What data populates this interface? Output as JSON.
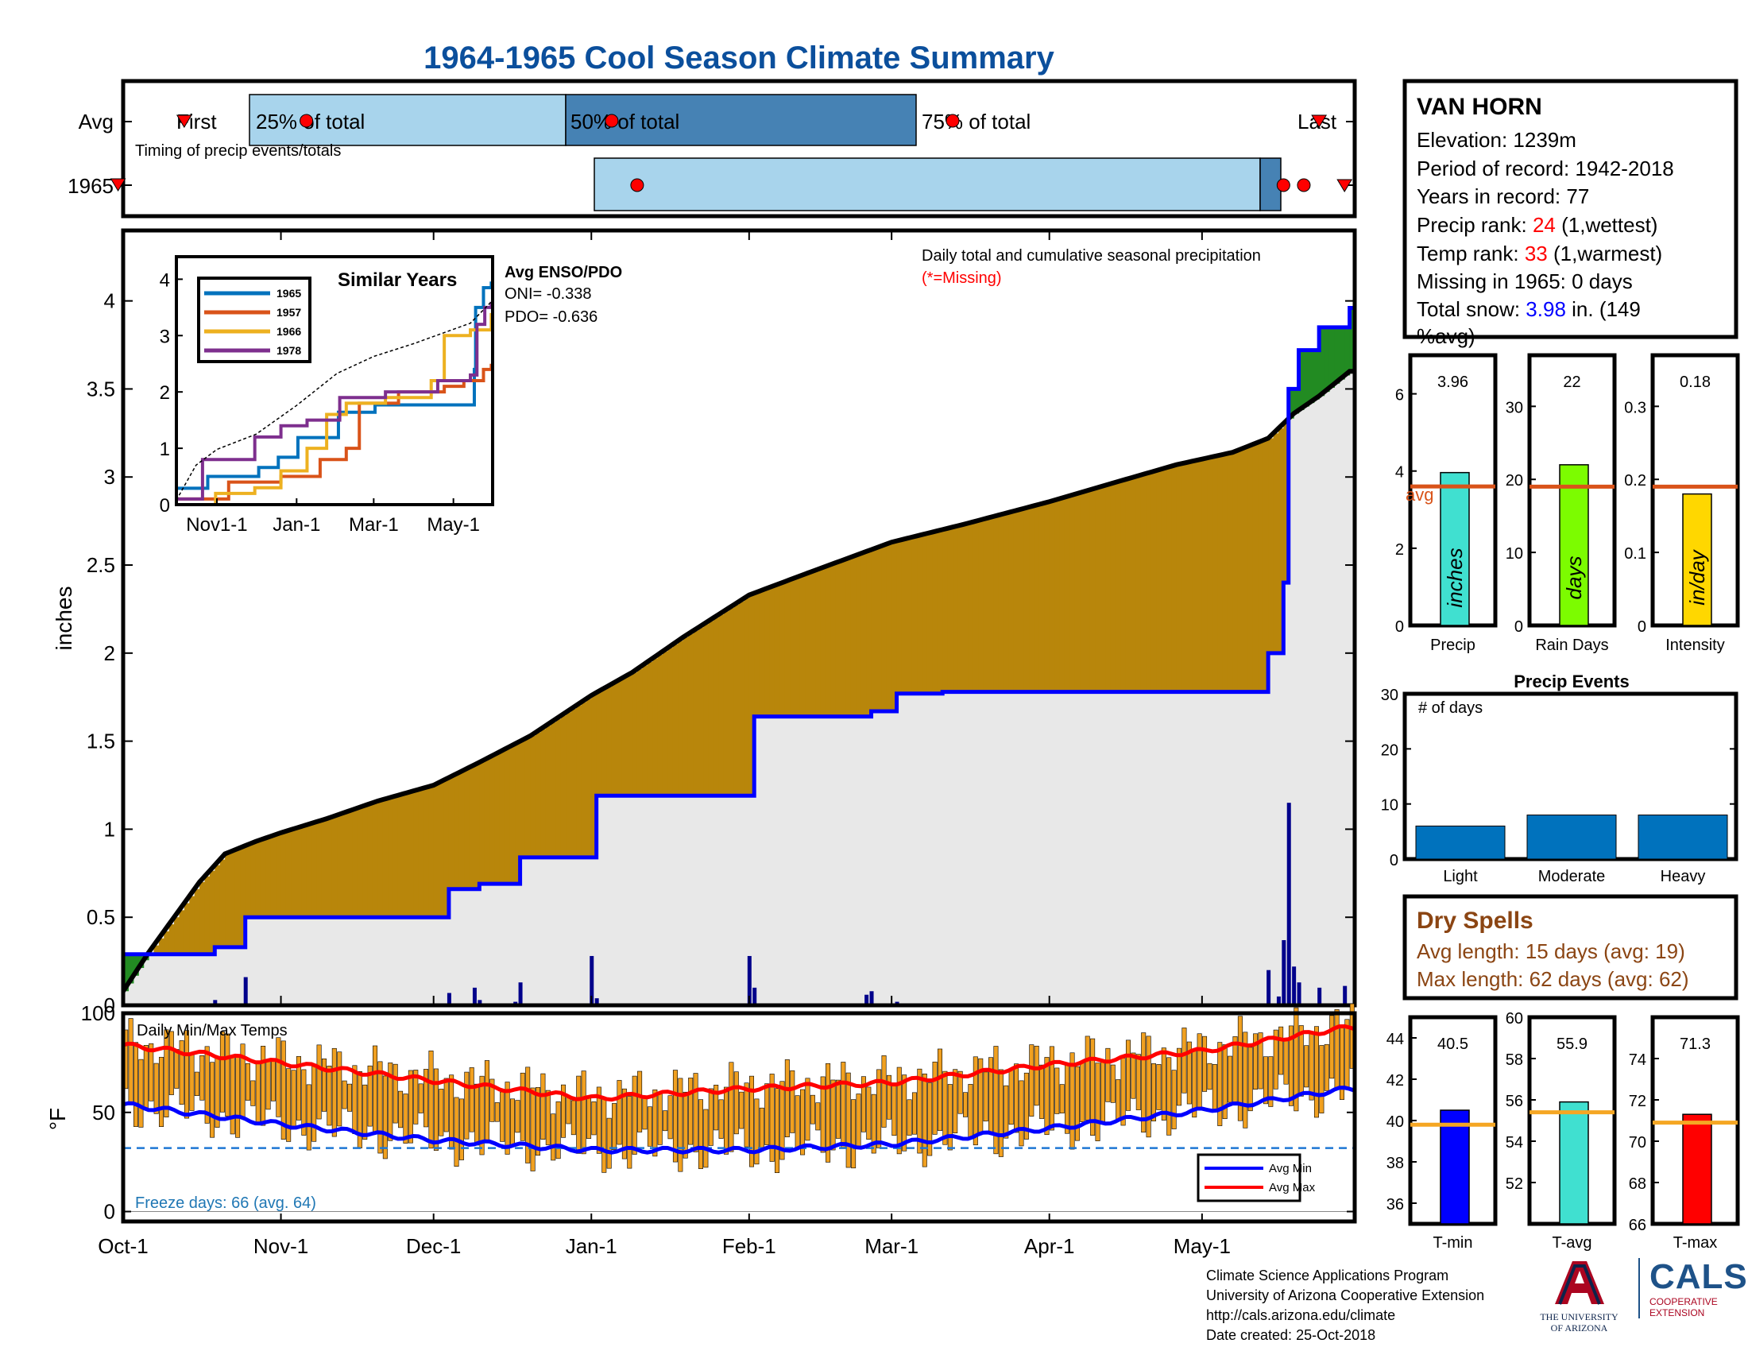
{
  "title": "1964-1965 Cool Season Climate Summary",
  "timing": {
    "caption": "Timing of precip events/totals",
    "avg_label": "Avg",
    "year_label": "1965",
    "first_label": "First",
    "last_label": "Last",
    "pct25_label": "25% of total",
    "pct50_label": "50% of total",
    "pct75_label": "75% of total",
    "avg_markers_day": {
      "first": 12,
      "p25": 36,
      "p50": 96,
      "p75": 163,
      "last": 235
    },
    "year_markers_day": {
      "first": -1,
      "p25": 101,
      "p50": 228,
      "p75": 232,
      "last": 240
    }
  },
  "station": {
    "name": "VAN HORN",
    "elevation": "Elevation: 1239m",
    "period": "Period of record: 1942-2018",
    "years": "Years in record: 77",
    "precip_rank_label": "Precip rank: ",
    "precip_rank_value": "24",
    "precip_rank_note": " (1,wettest)",
    "temp_rank_label": "Temp rank: ",
    "temp_rank_value": "33",
    "temp_rank_note": " (1,warmest)",
    "missing": "Missing in 1965: 0 days",
    "snow_label": "Total snow: ",
    "snow_value": "3.98",
    "snow_unit": " in. (149",
    "snow_avg": "%avg)"
  },
  "main_chart": {
    "caption": "Daily total and cumulative seasonal precipitation",
    "missing_note": "(*=Missing)",
    "ylabel": "inches",
    "y_ticks": [
      "0",
      "0.5",
      "1",
      "1.5",
      "2",
      "2.5",
      "3",
      "3.5",
      "4"
    ],
    "ylim": [
      0,
      4.4
    ],
    "x_ticks": [
      "Oct-1",
      "Nov-1",
      "Dec-1",
      "Jan-1",
      "Feb-1",
      "Mar-1",
      "Apr-1",
      "May-1"
    ],
    "x_tick_days": [
      0,
      31,
      61,
      92,
      123,
      151,
      182,
      212
    ],
    "days_in_season": 242
  },
  "chart_data": [
    {
      "type": "area",
      "title": "Daily total and cumulative seasonal precipitation",
      "xlabel": "",
      "ylabel": "inches",
      "ylim": [
        0,
        4.4
      ],
      "series": [
        {
          "name": "cumulative 1965 (step)",
          "color": "#0000ff",
          "points": [
            [
              0,
              0.29
            ],
            [
              14,
              0.29
            ],
            [
              18,
              0.33
            ],
            [
              24,
              0.5
            ],
            [
              63,
              0.5
            ],
            [
              64,
              0.66
            ],
            [
              69,
              0.66
            ],
            [
              70,
              0.69
            ],
            [
              77,
              0.69
            ],
            [
              78,
              0.84
            ],
            [
              92,
              0.84
            ],
            [
              93,
              1.19
            ],
            [
              123,
              1.19
            ],
            [
              124,
              1.64
            ],
            [
              146,
              1.64
            ],
            [
              147,
              1.67
            ],
            [
              151,
              1.67
            ],
            [
              152,
              1.77
            ],
            [
              160,
              1.77
            ],
            [
              161,
              1.78
            ],
            [
              224,
              1.78
            ],
            [
              225,
              2.0
            ],
            [
              227,
              2.0
            ],
            [
              228,
              2.4
            ],
            [
              229,
              3.5
            ],
            [
              230,
              3.5
            ],
            [
              231,
              3.72
            ],
            [
              234,
              3.72
            ],
            [
              235,
              3.85
            ],
            [
              240,
              3.85
            ],
            [
              241,
              3.96
            ]
          ]
        },
        {
          "name": "cumulative average",
          "color": "#000000",
          "points": [
            [
              0,
              0.08
            ],
            [
              5,
              0.3
            ],
            [
              10,
              0.5
            ],
            [
              15,
              0.7
            ],
            [
              20,
              0.86
            ],
            [
              26,
              0.93
            ],
            [
              31,
              0.98
            ],
            [
              40,
              1.06
            ],
            [
              50,
              1.16
            ],
            [
              61,
              1.25
            ],
            [
              70,
              1.38
            ],
            [
              80,
              1.53
            ],
            [
              92,
              1.76
            ],
            [
              100,
              1.89
            ],
            [
              110,
              2.09
            ],
            [
              123,
              2.33
            ],
            [
              135,
              2.46
            ],
            [
              151,
              2.63
            ],
            [
              165,
              2.73
            ],
            [
              182,
              2.86
            ],
            [
              195,
              2.97
            ],
            [
              207,
              3.07
            ],
            [
              218,
              3.14
            ],
            [
              225,
              3.22
            ],
            [
              230,
              3.36
            ],
            [
              235,
              3.46
            ],
            [
              241,
              3.6
            ]
          ]
        },
        {
          "name": "daily precip 1965",
          "color": "#00008b",
          "days": [
            18,
            24,
            64,
            69,
            70,
            77,
            78,
            92,
            93,
            123,
            124,
            146,
            147,
            152,
            161,
            225,
            227,
            228,
            229,
            230,
            231,
            235,
            240
          ],
          "values": [
            0.03,
            0.16,
            0.07,
            0.1,
            0.03,
            0.02,
            0.13,
            0.28,
            0.04,
            0.28,
            0.1,
            0.06,
            0.08,
            0.02,
            0.01,
            0.2,
            0.05,
            0.37,
            1.15,
            0.22,
            0.13,
            0.1,
            0.11
          ]
        }
      ]
    },
    {
      "type": "line",
      "title": "Similar Years",
      "x_ticks": [
        "Nov1-1",
        "Jan-1",
        "Mar-1",
        "May-1"
      ],
      "x_tick_days": [
        31,
        92,
        151,
        212
      ],
      "y_ticks": [
        "0",
        "1",
        "2",
        "3",
        "4"
      ],
      "ylim": [
        0,
        4
      ],
      "series": [
        {
          "name": "1965",
          "color": "#0072bd",
          "points": [
            [
              0,
              0.29
            ],
            [
              24,
              0.5
            ],
            [
              63,
              0.66
            ],
            [
              78,
              0.84
            ],
            [
              93,
              1.19
            ],
            [
              124,
              1.64
            ],
            [
              152,
              1.77
            ],
            [
              228,
              2.4
            ],
            [
              229,
              3.5
            ],
            [
              235,
              3.85
            ],
            [
              241,
              3.96
            ]
          ]
        },
        {
          "name": "1957",
          "color": "#d95319",
          "points": [
            [
              0,
              0.1
            ],
            [
              40,
              0.4
            ],
            [
              80,
              0.5
            ],
            [
              110,
              0.8
            ],
            [
              130,
              1.0
            ],
            [
              140,
              1.8
            ],
            [
              170,
              2.0
            ],
            [
              205,
              2.1
            ],
            [
              220,
              2.2
            ],
            [
              235,
              2.4
            ],
            [
              241,
              2.5
            ]
          ]
        },
        {
          "name": "1966",
          "color": "#edb120",
          "points": [
            [
              0,
              0.0
            ],
            [
              30,
              0.2
            ],
            [
              60,
              0.3
            ],
            [
              80,
              0.6
            ],
            [
              100,
              1.0
            ],
            [
              115,
              1.6
            ],
            [
              130,
              1.8
            ],
            [
              160,
              1.9
            ],
            [
              195,
              2.2
            ],
            [
              205,
              3.0
            ],
            [
              225,
              3.1
            ],
            [
              241,
              3.4
            ]
          ]
        },
        {
          "name": "1978",
          "color": "#7e2f8e",
          "points": [
            [
              0,
              0.1
            ],
            [
              20,
              0.8
            ],
            [
              50,
              0.8
            ],
            [
              60,
              1.2
            ],
            [
              80,
              1.4
            ],
            [
              100,
              1.5
            ],
            [
              125,
              1.9
            ],
            [
              160,
              2.0
            ],
            [
              200,
              2.2
            ],
            [
              225,
              2.3
            ],
            [
              230,
              3.2
            ],
            [
              236,
              3.5
            ],
            [
              241,
              3.6
            ]
          ]
        },
        {
          "name": "average",
          "color": "#000000",
          "dashed": true,
          "points": [
            [
              0,
              0.08
            ],
            [
              15,
              0.7
            ],
            [
              31,
              0.98
            ],
            [
              61,
              1.25
            ],
            [
              92,
              1.76
            ],
            [
              123,
              2.33
            ],
            [
              151,
              2.63
            ],
            [
              182,
              2.86
            ],
            [
              207,
              3.07
            ],
            [
              225,
              3.22
            ],
            [
              241,
              3.6
            ]
          ]
        }
      ]
    },
    {
      "type": "bar",
      "title": "Precip",
      "values": [
        3.96
      ],
      "avg": 3.6,
      "ylim": [
        0,
        7
      ],
      "y_ticks": [
        "0",
        "2",
        "4",
        "6"
      ],
      "value_label": "3.96",
      "unit_label": "inches",
      "color": "#40e0d0"
    },
    {
      "type": "bar",
      "title": "Rain Days",
      "values": [
        22
      ],
      "avg": 19,
      "ylim": [
        0,
        37
      ],
      "y_ticks": [
        "0",
        "10",
        "20",
        "30"
      ],
      "value_label": "22",
      "unit_label": "days",
      "color": "#7cfc00"
    },
    {
      "type": "bar",
      "title": "Intensity",
      "values": [
        0.18
      ],
      "avg": 0.19,
      "ylim": [
        0,
        0.37
      ],
      "y_ticks": [
        "0",
        "0.1",
        "0.2",
        "0.3"
      ],
      "value_label": "0.18",
      "unit_label": "in/day",
      "color": "#ffd700"
    },
    {
      "type": "bar",
      "title": "Precip Events",
      "ylabel": "# of days",
      "categories": [
        "Light",
        "Moderate",
        "Heavy"
      ],
      "values": [
        6,
        8,
        8
      ],
      "ylim": [
        0,
        30
      ],
      "y_ticks": [
        "0",
        "10",
        "20",
        "30"
      ],
      "color": "#0072bd"
    },
    {
      "type": "bar",
      "title": "Daily Min/Max Temps",
      "ylabel": "°F",
      "ylim": [
        -5,
        100
      ],
      "y_ticks": [
        "0",
        "50",
        "100"
      ],
      "freeze_line": 32,
      "bar_color": "#f0a020",
      "avg_min": {
        "name": "Avg Min",
        "color": "#0000ff",
        "points": [
          [
            0,
            54
          ],
          [
            31,
            44
          ],
          [
            61,
            36
          ],
          [
            92,
            31
          ],
          [
            123,
            31
          ],
          [
            151,
            34
          ],
          [
            182,
            42
          ],
          [
            212,
            51
          ],
          [
            241,
            62
          ]
        ]
      },
      "avg_max": {
        "name": "Avg Max",
        "color": "#ff0000",
        "points": [
          [
            0,
            84
          ],
          [
            31,
            75
          ],
          [
            61,
            66
          ],
          [
            92,
            57
          ],
          [
            123,
            62
          ],
          [
            151,
            65
          ],
          [
            182,
            74
          ],
          [
            212,
            81
          ],
          [
            241,
            93
          ]
        ]
      }
    },
    {
      "type": "bar",
      "title": "T-min",
      "values": [
        40.5
      ],
      "avg": 39.8,
      "ylim": [
        35,
        45
      ],
      "y_ticks": [
        "36",
        "38",
        "40",
        "42",
        "44"
      ],
      "value_label": "40.5",
      "color": "#0000ff"
    },
    {
      "type": "bar",
      "title": "T-avg",
      "values": [
        55.9
      ],
      "avg": 55.4,
      "ylim": [
        50,
        60
      ],
      "y_ticks": [
        "52",
        "54",
        "56",
        "58",
        "60"
      ],
      "value_label": "55.9",
      "color": "#40e0d0"
    },
    {
      "type": "bar",
      "title": "T-max",
      "values": [
        71.3
      ],
      "avg": 70.9,
      "ylim": [
        66,
        76
      ],
      "y_ticks": [
        "66",
        "68",
        "70",
        "72",
        "74"
      ],
      "value_label": "71.3",
      "color": "#ff0000"
    }
  ],
  "similar_years": {
    "title": "Similar Years",
    "enso_title": "Avg ENSO/PDO",
    "oni": "ONI= -0.338",
    "pdo": "PDO= -0.636"
  },
  "precip_events": {
    "ylabel": "# of days"
  },
  "small_bars": {
    "avg_label": "avg"
  },
  "dry_spells": {
    "title": "Dry Spells",
    "avg_length": "Avg length: 15 days (avg: 19)",
    "max_length": "Max length: 62 days (avg: 62)"
  },
  "temps": {
    "caption": "Daily Min/Max Temps",
    "freeze_days": "Freeze days: 66 (avg. 64)",
    "legend_min": "Avg Min",
    "legend_max": "Avg Max"
  },
  "footer": {
    "line1": "Climate Science Applications Program",
    "line2": "University of Arizona Cooperative Extension",
    "line3": "http://cals.arizona.edu/climate",
    "line4": " Date created: 25-Oct-2018",
    "ua_line1": "THE UNIVERSITY",
    "ua_line2": "OF ARIZONA",
    "cals_word": "CALS",
    "cals_line1": "COOPERATIVE",
    "cals_line2": "EXTENSION"
  },
  "colors": {
    "title_blue": "#0b4f9c",
    "brown_fill": "#b8860b",
    "green_fill": "#228b22",
    "gray_fill": "#e8e8e8",
    "light_blue_bar": "#a8d4ec",
    "mid_blue_bar": "#4682b4",
    "rank_red": "#ff0000",
    "snow_blue": "#0000ff",
    "dry_brown": "#8b4513",
    "avg_orange": "#d95319",
    "temp_avg_orange": "#f5a623"
  }
}
